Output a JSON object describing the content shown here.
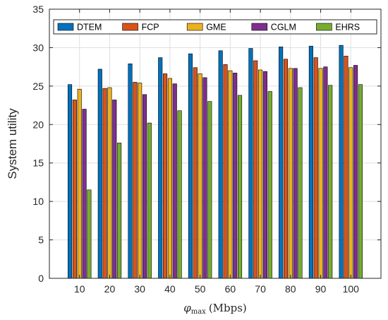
{
  "chart_data": {
    "type": "bar",
    "categories": [
      "10",
      "20",
      "30",
      "40",
      "50",
      "60",
      "70",
      "80",
      "90",
      "100"
    ],
    "series": [
      {
        "name": "DTEM",
        "color": "#0072BD",
        "values": [
          25.2,
          27.2,
          27.9,
          28.7,
          29.2,
          29.6,
          29.9,
          30.1,
          30.2,
          30.3
        ]
      },
      {
        "name": "FCP",
        "color": "#D95319",
        "values": [
          23.2,
          24.7,
          25.5,
          26.6,
          27.4,
          27.8,
          28.3,
          28.5,
          28.7,
          28.9
        ]
      },
      {
        "name": "GME",
        "color": "#EDB120",
        "values": [
          24.6,
          24.8,
          25.4,
          26.0,
          26.6,
          27.0,
          27.1,
          27.3,
          27.3,
          27.4
        ]
      },
      {
        "name": "CGLM",
        "color": "#7E2F8E",
        "values": [
          22.0,
          23.2,
          23.9,
          25.3,
          26.1,
          26.7,
          26.9,
          27.3,
          27.5,
          27.7
        ]
      },
      {
        "name": "EHRS",
        "color": "#77AC30",
        "values": [
          11.5,
          17.6,
          20.2,
          21.8,
          23.0,
          23.8,
          24.3,
          24.8,
          25.1,
          25.2
        ]
      }
    ],
    "xlabel": "φmax (Mbps)",
    "xlabel_main": "φ",
    "xlabel_sub": "max",
    "xlabel_unit": "(Mbps)",
    "ylabel": "System utility",
    "ylim": [
      0,
      35
    ],
    "yticks": [
      0,
      5,
      10,
      15,
      20,
      25,
      30,
      35
    ],
    "grid": true,
    "legend_position": "top",
    "legend_orientation": "horizontal"
  }
}
